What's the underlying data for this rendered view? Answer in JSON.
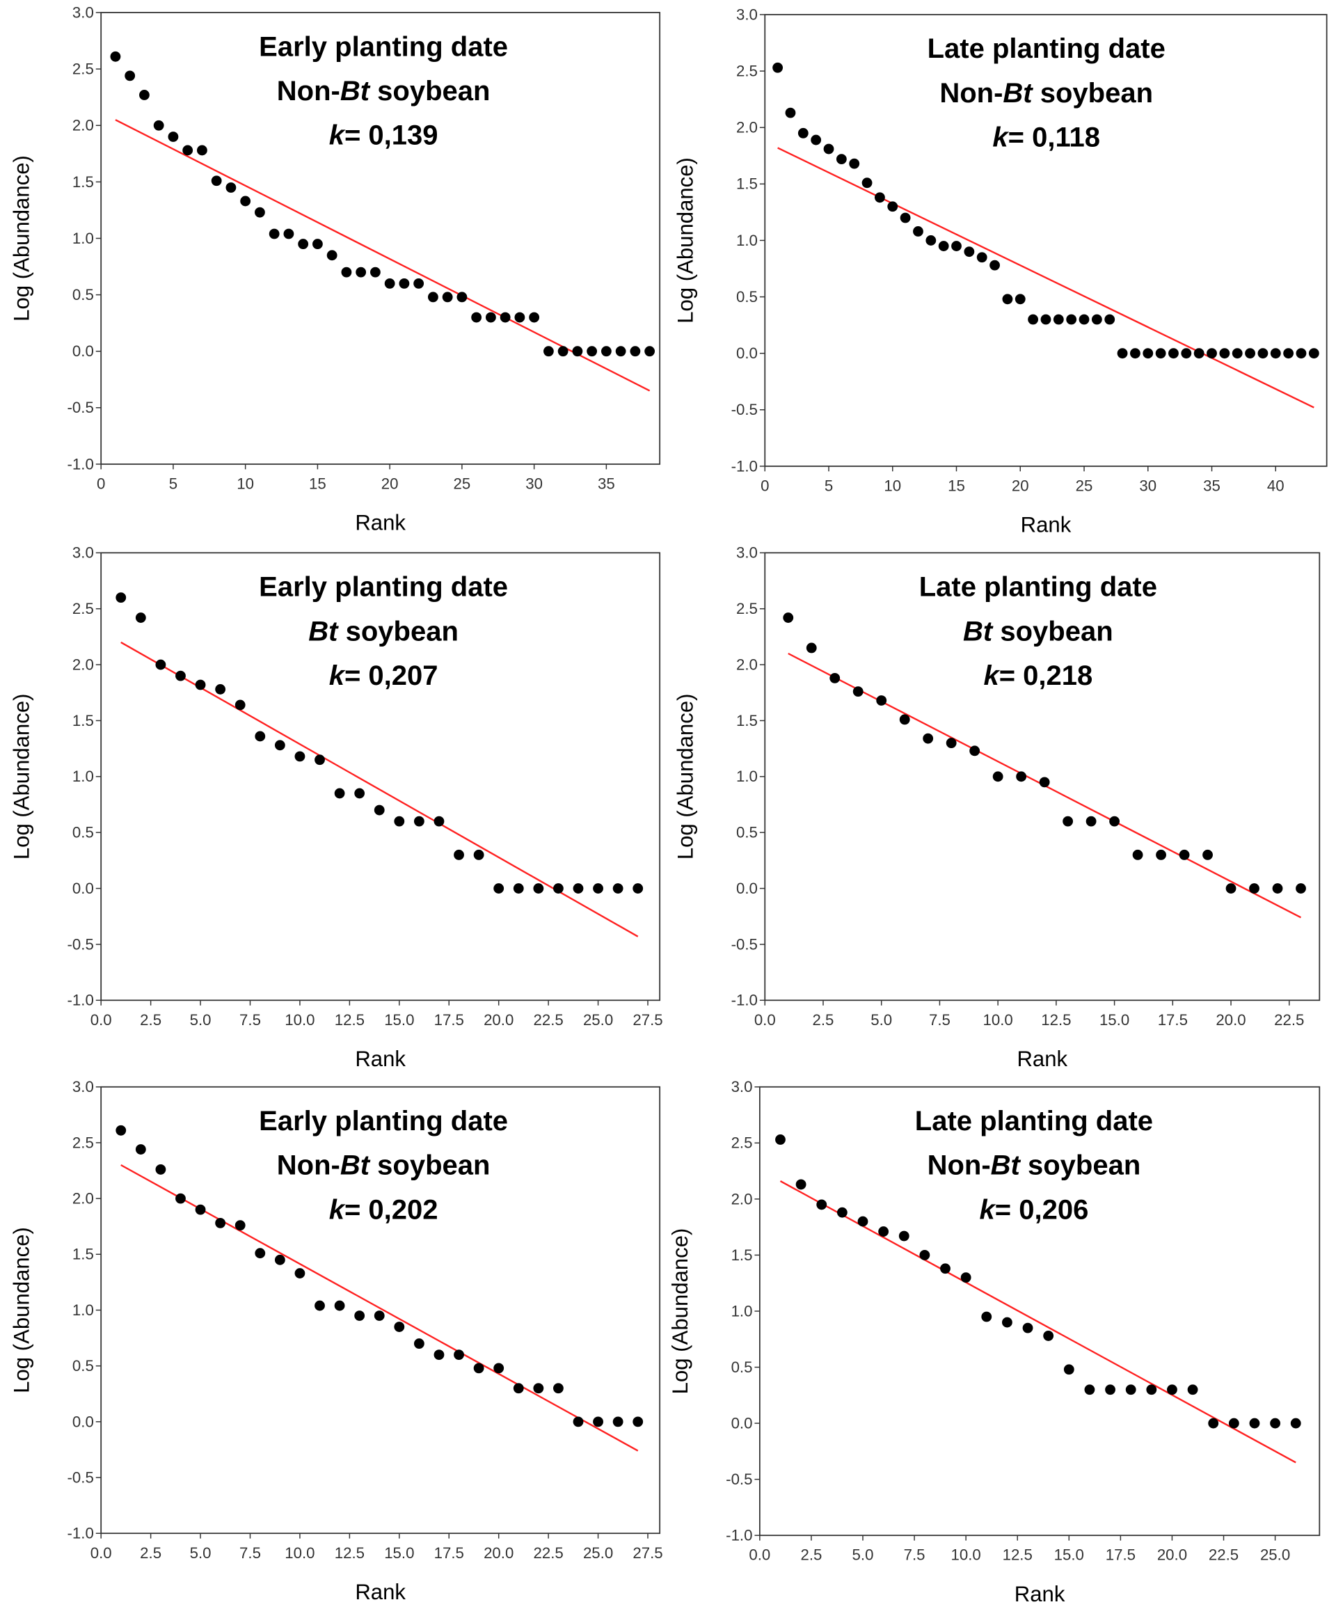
{
  "chart_data": [
    {
      "type": "scatter",
      "title_lines": [
        {
          "text": "Early planting date"
        },
        {
          "prefix": "Non-",
          "italic": "Bt",
          "suffix": " soybean"
        },
        {
          "italic": "k",
          "suffix": "= 0,139"
        }
      ],
      "xlabel": "Rank",
      "ylabel": "Log (Abundance)",
      "xlim": [
        0,
        38.7
      ],
      "ylim": [
        -1.0,
        3.0
      ],
      "xticks": [
        "0",
        "5",
        "10",
        "15",
        "20",
        "25",
        "30",
        "35"
      ],
      "yticks": [
        "-1.0",
        "-0.5",
        "0.0",
        "0.5",
        "1.0",
        "1.5",
        "2.0",
        "2.5",
        "3.0"
      ],
      "point_color": "#000000",
      "line_color": "#ff2020",
      "y": [
        2.61,
        2.44,
        2.27,
        2.0,
        1.9,
        1.78,
        1.78,
        1.51,
        1.45,
        1.33,
        1.23,
        1.04,
        1.04,
        0.95,
        0.95,
        0.85,
        0.7,
        0.7,
        0.7,
        0.6,
        0.6,
        0.6,
        0.48,
        0.48,
        0.48,
        0.3,
        0.3,
        0.3,
        0.3,
        0.3,
        0,
        0,
        0,
        0,
        0,
        0,
        0,
        0
      ],
      "fit_line": {
        "x": [
          1,
          38
        ],
        "y": [
          2.05,
          -0.35
        ]
      }
    },
    {
      "type": "scatter",
      "title_lines": [
        {
          "text": "Late planting date"
        },
        {
          "prefix": "Non-",
          "italic": "Bt",
          "suffix": " soybean"
        },
        {
          "italic": "k",
          "suffix": "= 0,118"
        }
      ],
      "xlabel": "Rank",
      "ylabel": "Log (Abundance)",
      "xlim": [
        0,
        44
      ],
      "ylim": [
        -1.0,
        3.0
      ],
      "xticks": [
        "0",
        "5",
        "10",
        "15",
        "20",
        "25",
        "30",
        "35",
        "40"
      ],
      "yticks": [
        "-1.0",
        "-0.5",
        "0.0",
        "0.5",
        "1.0",
        "1.5",
        "2.0",
        "2.5",
        "3.0"
      ],
      "point_color": "#000000",
      "line_color": "#ff2020",
      "y": [
        2.53,
        2.13,
        1.95,
        1.89,
        1.81,
        1.72,
        1.68,
        1.51,
        1.38,
        1.3,
        1.2,
        1.08,
        1.0,
        0.95,
        0.95,
        0.9,
        0.85,
        0.78,
        0.48,
        0.48,
        0.3,
        0.3,
        0.3,
        0.3,
        0.3,
        0.3,
        0.3,
        0,
        0,
        0,
        0,
        0,
        0,
        0,
        0,
        0,
        0,
        0,
        0,
        0,
        0,
        0,
        0
      ],
      "fit_line": {
        "x": [
          1,
          43
        ],
        "y": [
          1.82,
          -0.48
        ]
      }
    },
    {
      "type": "scatter",
      "title_lines": [
        {
          "text": "Early planting date"
        },
        {
          "prefix": "",
          "italic": "Bt",
          "suffix": " soybean"
        },
        {
          "italic": "k",
          "suffix": "= 0,207"
        }
      ],
      "xlabel": "Rank",
      "ylabel": "Log (Abundance)",
      "xlim": [
        0,
        28.1
      ],
      "ylim": [
        -1.0,
        3.0
      ],
      "xticks": [
        "0.0",
        "2.5",
        "5.0",
        "7.5",
        "10.0",
        "12.5",
        "15.0",
        "17.5",
        "20.0",
        "22.5",
        "25.0",
        "27.5"
      ],
      "yticks": [
        "-1.0",
        "-0.5",
        "0.0",
        "0.5",
        "1.0",
        "1.5",
        "2.0",
        "2.5",
        "3.0"
      ],
      "point_color": "#000000",
      "line_color": "#ff2020",
      "y": [
        2.6,
        2.42,
        2.0,
        1.9,
        1.82,
        1.78,
        1.64,
        1.36,
        1.28,
        1.18,
        1.15,
        0.85,
        0.85,
        0.7,
        0.6,
        0.6,
        0.6,
        0.3,
        0.3,
        0,
        0,
        0,
        0,
        0,
        0,
        0,
        0
      ],
      "fit_line": {
        "x": [
          1,
          27
        ],
        "y": [
          2.2,
          -0.43
        ]
      }
    },
    {
      "type": "scatter",
      "title_lines": [
        {
          "text": "Late planting date"
        },
        {
          "prefix": "",
          "italic": "Bt",
          "suffix": " soybean"
        },
        {
          "italic": "k",
          "suffix": "= 0,218"
        }
      ],
      "xlabel": "Rank",
      "ylabel": "Log (Abundance)",
      "xlim": [
        0,
        23.8
      ],
      "ylim": [
        -1.0,
        3.0
      ],
      "xticks": [
        "0.0",
        "2.5",
        "5.0",
        "7.5",
        "10.0",
        "12.5",
        "15.0",
        "17.5",
        "20.0",
        "22.5"
      ],
      "yticks": [
        "-1.0",
        "-0.5",
        "0.0",
        "0.5",
        "1.0",
        "1.5",
        "2.0",
        "2.5",
        "3.0"
      ],
      "point_color": "#000000",
      "line_color": "#ff2020",
      "y": [
        2.42,
        2.15,
        1.88,
        1.76,
        1.68,
        1.51,
        1.34,
        1.3,
        1.23,
        1.0,
        1.0,
        0.95,
        0.6,
        0.6,
        0.6,
        0.3,
        0.3,
        0.3,
        0.3,
        0,
        0,
        0,
        0
      ],
      "fit_line": {
        "x": [
          1,
          23
        ],
        "y": [
          2.1,
          -0.26
        ]
      }
    },
    {
      "type": "scatter",
      "title_lines": [
        {
          "text": "Early planting date"
        },
        {
          "prefix": "Non-",
          "italic": "Bt",
          "suffix": " soybean"
        },
        {
          "italic": "k",
          "suffix": "= 0,202"
        }
      ],
      "xlabel": "Rank",
      "ylabel": "Log (Abundance)",
      "xlim": [
        0,
        28.1
      ],
      "ylim": [
        -1.0,
        3.0
      ],
      "xticks": [
        "0.0",
        "2.5",
        "5.0",
        "7.5",
        "10.0",
        "12.5",
        "15.0",
        "17.5",
        "20.0",
        "22.5",
        "25.0",
        "27.5"
      ],
      "yticks": [
        "-1.0",
        "-0.5",
        "0.0",
        "0.5",
        "1.0",
        "1.5",
        "2.0",
        "2.5",
        "3.0"
      ],
      "point_color": "#000000",
      "line_color": "#ff2020",
      "y": [
        2.61,
        2.44,
        2.26,
        2.0,
        1.9,
        1.78,
        1.76,
        1.51,
        1.45,
        1.33,
        1.04,
        1.04,
        0.95,
        0.95,
        0.85,
        0.7,
        0.6,
        0.6,
        0.48,
        0.48,
        0.3,
        0.3,
        0.3,
        0,
        0,
        0,
        0
      ],
      "fit_line": {
        "x": [
          1,
          27
        ],
        "y": [
          2.3,
          -0.26
        ]
      }
    },
    {
      "type": "scatter",
      "title_lines": [
        {
          "text": "Late planting date"
        },
        {
          "prefix": "Non-",
          "italic": "Bt",
          "suffix": " soybean"
        },
        {
          "italic": "k",
          "suffix": "= 0,206"
        }
      ],
      "xlabel": "Rank",
      "ylabel": "Log (Abundance)",
      "xlim": [
        0,
        27.15
      ],
      "ylim": [
        -1.0,
        3.0
      ],
      "xticks": [
        "0.0",
        "2.5",
        "5.0",
        "7.5",
        "10.0",
        "12.5",
        "15.0",
        "17.5",
        "20.0",
        "22.5",
        "25.0"
      ],
      "yticks": [
        "-1.0",
        "-0.5",
        "0.0",
        "0.5",
        "1.0",
        "1.5",
        "2.0",
        "2.5",
        "3.0"
      ],
      "point_color": "#000000",
      "line_color": "#ff2020",
      "y": [
        2.53,
        2.13,
        1.95,
        1.88,
        1.8,
        1.71,
        1.67,
        1.5,
        1.38,
        1.3,
        0.95,
        0.9,
        0.85,
        0.78,
        0.48,
        0.3,
        0.3,
        0.3,
        0.3,
        0.3,
        0.3,
        0,
        0,
        0,
        0,
        0
      ],
      "fit_line": {
        "x": [
          1,
          26
        ],
        "y": [
          2.16,
          -0.35
        ]
      }
    }
  ]
}
